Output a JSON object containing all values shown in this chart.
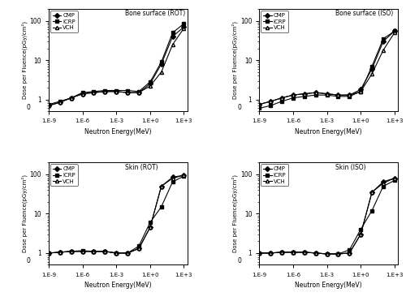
{
  "energy": [
    1e-09,
    1e-08,
    1e-07,
    1e-06,
    1e-05,
    0.0001,
    0.001,
    0.01,
    0.1,
    1.0,
    10.0,
    100.0,
    1000.0
  ],
  "bone_rot_CMP": [
    0.7,
    0.85,
    1.1,
    1.4,
    1.5,
    1.6,
    1.6,
    1.5,
    1.5,
    2.5,
    8.0,
    40.0,
    70.0
  ],
  "bone_rot_ICRP": [
    0.75,
    0.9,
    1.1,
    1.5,
    1.6,
    1.7,
    1.7,
    1.7,
    1.6,
    2.8,
    9.0,
    50.0,
    85.0
  ],
  "bone_rot_VCH": [
    0.7,
    0.85,
    1.1,
    1.4,
    1.5,
    1.6,
    1.6,
    1.5,
    1.5,
    2.2,
    5.0,
    25.0,
    65.0
  ],
  "bone_iso_CMP": [
    0.75,
    0.9,
    1.1,
    1.3,
    1.4,
    1.5,
    1.4,
    1.3,
    1.3,
    1.8,
    6.0,
    30.0,
    55.0
  ],
  "bone_iso_ICRP": [
    0.6,
    0.7,
    0.9,
    1.1,
    1.2,
    1.3,
    1.3,
    1.2,
    1.2,
    1.6,
    7.0,
    35.0,
    55.0
  ],
  "bone_iso_VCH": [
    0.75,
    0.9,
    1.1,
    1.3,
    1.4,
    1.5,
    1.4,
    1.3,
    1.3,
    1.6,
    4.5,
    18.0,
    50.0
  ],
  "skin_rot_CMP": [
    1.0,
    1.05,
    1.1,
    1.1,
    1.1,
    1.1,
    1.0,
    1.0,
    1.3,
    4.5,
    50.0,
    85.0,
    95.0
  ],
  "skin_rot_ICRP": [
    1.0,
    1.05,
    1.1,
    1.15,
    1.1,
    1.1,
    1.0,
    1.0,
    1.5,
    6.0,
    15.0,
    65.0,
    90.0
  ],
  "skin_rot_VCH": [
    1.0,
    1.05,
    1.1,
    1.1,
    1.1,
    1.1,
    1.0,
    1.0,
    1.3,
    4.5,
    50.0,
    80.0,
    95.0
  ],
  "skin_iso_CMP": [
    1.0,
    1.0,
    1.05,
    1.05,
    1.05,
    1.0,
    0.95,
    0.95,
    1.0,
    3.0,
    35.0,
    65.0,
    80.0
  ],
  "skin_iso_ICRP": [
    1.0,
    1.0,
    1.05,
    1.05,
    1.05,
    1.0,
    0.95,
    0.95,
    1.2,
    4.0,
    12.0,
    50.0,
    70.0
  ],
  "skin_iso_VCH": [
    1.0,
    1.0,
    1.05,
    1.05,
    1.05,
    1.0,
    0.95,
    0.95,
    1.0,
    3.0,
    35.0,
    60.0,
    80.0
  ],
  "titles": [
    "Bone surface (ROT)",
    "Bone surface (ISO)",
    "Skin (ROT)",
    "Skin (ISO)"
  ],
  "ylabel": "Dose per Fluence(pGy/cm²)",
  "xlabel": "Neutron Energy(MeV)",
  "ylim": [
    0.5,
    200
  ],
  "xlim": [
    1e-09,
    2000.0
  ],
  "legend_labels": [
    "CMP",
    "ICRP",
    "VCH"
  ],
  "color": "black",
  "cmp_marker": "D",
  "icrp_marker": "s",
  "vch_marker": "^"
}
